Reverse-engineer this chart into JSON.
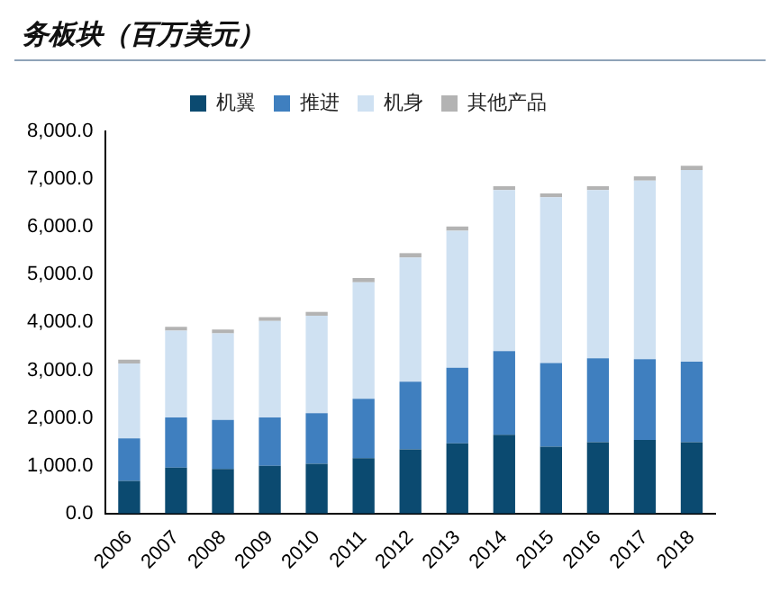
{
  "chart_data": {
    "type": "bar",
    "title": "务板块（百万美元）",
    "stacked": true,
    "legend": "top",
    "categories": [
      "2006",
      "2007",
      "2008",
      "2009",
      "2010",
      "2011",
      "2012",
      "2013",
      "2014",
      "2015",
      "2016",
      "2017",
      "2018"
    ],
    "series": [
      {
        "name": "机翼",
        "color": "#0b4a70",
        "values": [
          680,
          960,
          930,
          1000,
          1040,
          1160,
          1340,
          1470,
          1650,
          1400,
          1490,
          1540,
          1490
        ]
      },
      {
        "name": "推进",
        "color": "#3f7fbf",
        "values": [
          890,
          1050,
          1030,
          1010,
          1060,
          1240,
          1420,
          1580,
          1750,
          1750,
          1760,
          1690,
          1690
        ]
      },
      {
        "name": "机身",
        "color": "#cfe1f2",
        "values": [
          1570,
          1820,
          1810,
          2020,
          2040,
          2440,
          2600,
          2870,
          3370,
          3470,
          3520,
          3740,
          4010
        ]
      },
      {
        "name": "其他产品",
        "color": "#b3b3b3",
        "values": [
          80,
          80,
          80,
          80,
          80,
          90,
          90,
          90,
          80,
          80,
          80,
          90,
          90
        ]
      }
    ],
    "ylim": [
      0,
      8000
    ],
    "yticks": [
      {
        "value": 0,
        "label": "0.0"
      },
      {
        "value": 1000,
        "label": "1,000.0"
      },
      {
        "value": 2000,
        "label": "2,000.0"
      },
      {
        "value": 3000,
        "label": "3,000.0"
      },
      {
        "value": 4000,
        "label": "4,000.0"
      },
      {
        "value": 5000,
        "label": "5,000.0"
      },
      {
        "value": 6000,
        "label": "6,000.0"
      },
      {
        "value": 7000,
        "label": "7,000.0"
      },
      {
        "value": 8000,
        "label": "8,000.0"
      }
    ]
  }
}
